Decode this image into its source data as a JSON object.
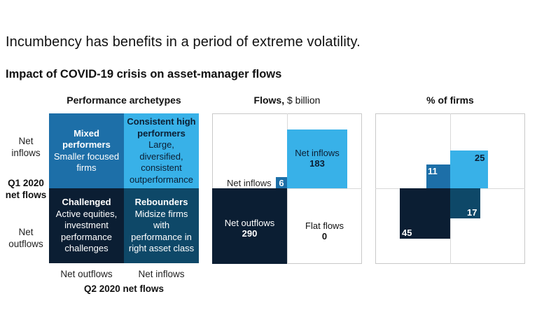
{
  "title": "Incumbency has benefits in a period of extreme volatility.",
  "subtitle": "Impact of COVID-19 crisis on asset-manager flows",
  "archetypes": {
    "header": "Performance archetypes",
    "row_top_label": "Net inflows",
    "row_mid_label": "Q1 2020 net flows",
    "row_bottom_label": "Net outflows",
    "col_left_label": "Net outflows",
    "col_right_label": "Net inflows",
    "x_axis_label": "Q2 2020 net flows",
    "quadrants": {
      "top_left": {
        "title": "Mixed performers",
        "desc": "Smaller focused firms",
        "color": "#1d6fa8"
      },
      "top_right": {
        "title": "Consistent high performers",
        "desc": "Large, diversified, consistent outperformance",
        "color": "#38b1e8"
      },
      "bottom_left": {
        "title": "Challenged",
        "desc": "Active equities, investment performance challenges",
        "color": "#0b1e33"
      },
      "bottom_right": {
        "title": "Rebounders",
        "desc": "Midsize firms with performance in right asset class",
        "color": "#0e4868"
      }
    }
  },
  "flows": {
    "header": "Flows,",
    "unit": "$ billion",
    "items": {
      "net_inflows": {
        "label": "Net inflows",
        "value": "183"
      },
      "mixed": {
        "label": "Net inflows",
        "value": "6"
      },
      "net_outflows": {
        "label": "Net outflows",
        "value": "290"
      },
      "flat": {
        "label": "Flat flows",
        "value": "0"
      }
    }
  },
  "firms": {
    "header": "% of firms",
    "items": {
      "top_right": {
        "value": "25"
      },
      "top_left": {
        "value": "11"
      },
      "bottom_right": {
        "value": "17"
      },
      "bottom_left": {
        "value": "45"
      }
    }
  }
}
